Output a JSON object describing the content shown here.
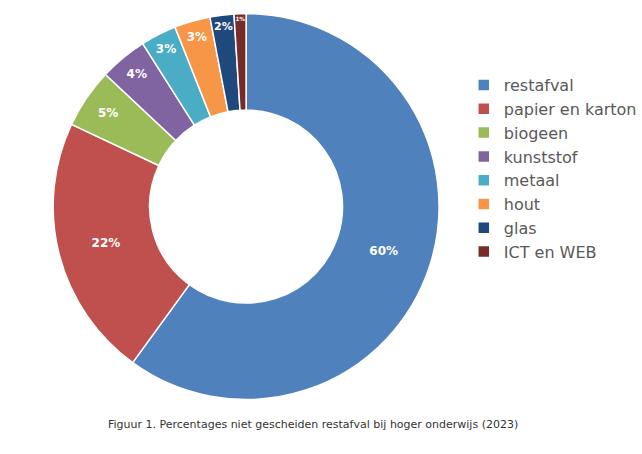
{
  "chart_data": {
    "type": "pie",
    "title": "Figuur 1. Percentages niet gescheiden restafval bij hoger onderwijs (2023)",
    "categories": [
      "restafval",
      "papier en karton",
      "biogeen",
      "kunststof",
      "metaal",
      "hout",
      "glas",
      "ICT en WEB"
    ],
    "values": [
      60,
      22,
      5,
      4,
      3,
      3,
      2,
      1
    ],
    "value_labels": [
      "60%",
      "22%",
      "5%",
      "4%",
      "3%",
      "3%",
      "2%",
      "1%"
    ],
    "colors": [
      "#4f81bd",
      "#c0504d",
      "#9bbb59",
      "#8064a2",
      "#4bacc6",
      "#f79646",
      "#1f497d",
      "#772c2a"
    ],
    "data_labels": true,
    "legend": "right"
  }
}
